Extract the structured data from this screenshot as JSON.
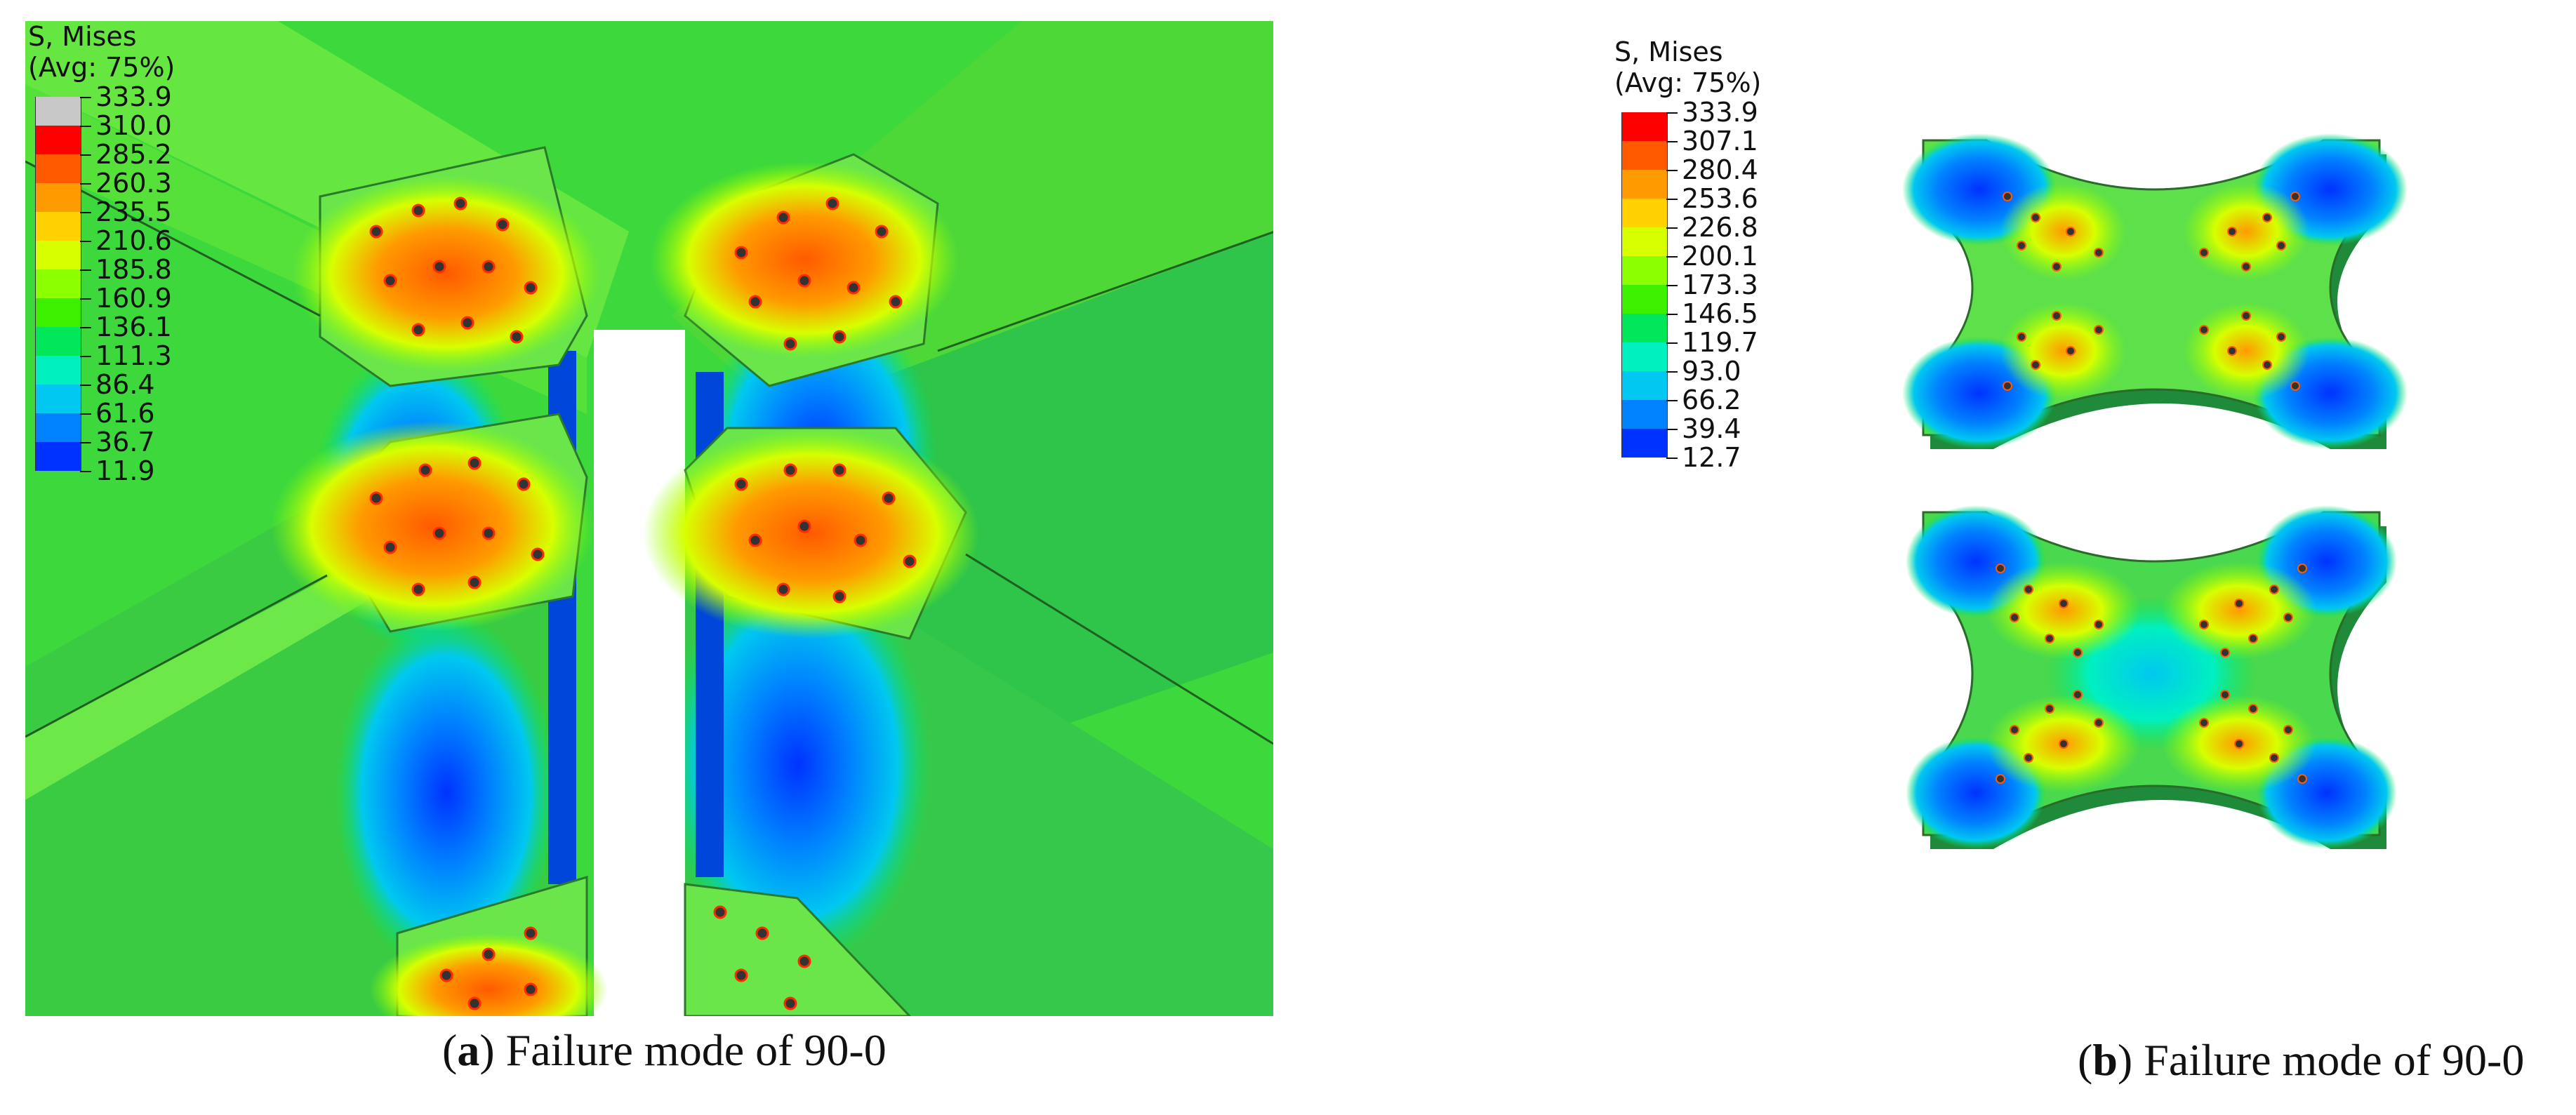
{
  "panel_a": {
    "legend": {
      "title_line1": "S, Mises",
      "title_line2": "(Avg: 75%)",
      "values": [
        "333.9",
        "310.0",
        "285.2",
        "260.3",
        "235.5",
        "210.6",
        "185.8",
        "160.9",
        "136.1",
        "111.3",
        "86.4",
        "61.6",
        "36.7",
        "11.9"
      ],
      "colors": [
        "#c8c8c8",
        "#ff0000",
        "#ff5a00",
        "#ff9a00",
        "#ffd200",
        "#d7ff00",
        "#8cff00",
        "#3cf000",
        "#00e85a",
        "#00f0c0",
        "#00c8f0",
        "#0082ff",
        "#0032ff"
      ]
    },
    "caption_letter": "a",
    "caption_text": "Failure mode of 90-0"
  },
  "panel_b": {
    "legend": {
      "title_line1": "S, Mises",
      "title_line2": "(Avg: 75%)",
      "values": [
        "333.9",
        "307.1",
        "280.4",
        "253.6",
        "226.8",
        "200.1",
        "173.3",
        "146.5",
        "119.7",
        "93.0",
        "66.2",
        "39.4",
        "12.7"
      ],
      "colors": [
        "#ff0000",
        "#ff5a00",
        "#ff9a00",
        "#ffd200",
        "#d7ff00",
        "#8cff00",
        "#3cf000",
        "#00e85a",
        "#00f0c0",
        "#00c8f0",
        "#0082ff",
        "#0032ff"
      ]
    },
    "caption_letter": "b",
    "caption_text": "Failure mode of 90-0"
  }
}
